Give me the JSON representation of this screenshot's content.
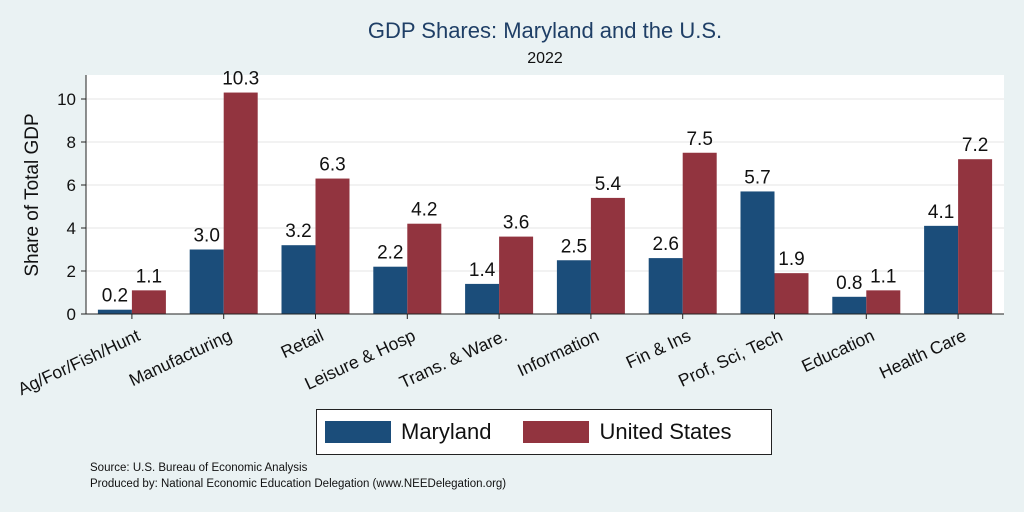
{
  "chart_data": {
    "type": "bar",
    "title": "GDP Shares: Maryland and the U.S.",
    "subtitle": "2022",
    "ylabel": "Share of Total GDP",
    "xlabel": "",
    "ylim": [
      0,
      11
    ],
    "yticks": [
      0,
      2,
      4,
      6,
      8,
      10
    ],
    "grid": true,
    "categories": [
      "Ag/For/Fish/Hunt",
      "Manufacturing",
      "Retail",
      "Leisure & Hosp",
      "Trans. & Ware.",
      "Information",
      "Fin & Ins",
      "Prof, Sci, Tech",
      "Education",
      "Health Care"
    ],
    "series": [
      {
        "name": "Maryland",
        "color": "#1b4d7a",
        "values": [
          0.2,
          3.0,
          3.2,
          2.2,
          1.4,
          2.5,
          2.6,
          5.7,
          0.8,
          4.1
        ]
      },
      {
        "name": "United States",
        "color": "#92343f",
        "values": [
          1.1,
          10.3,
          6.3,
          4.2,
          3.6,
          5.4,
          7.5,
          1.9,
          1.1,
          7.2
        ]
      }
    ],
    "legend_position": "bottom"
  },
  "notes": {
    "source": "Source: U.S. Bureau of Economic Analysis",
    "produced_by": "Produced by: National Economic Education Delegation (www.NEEDelegation.org)"
  }
}
